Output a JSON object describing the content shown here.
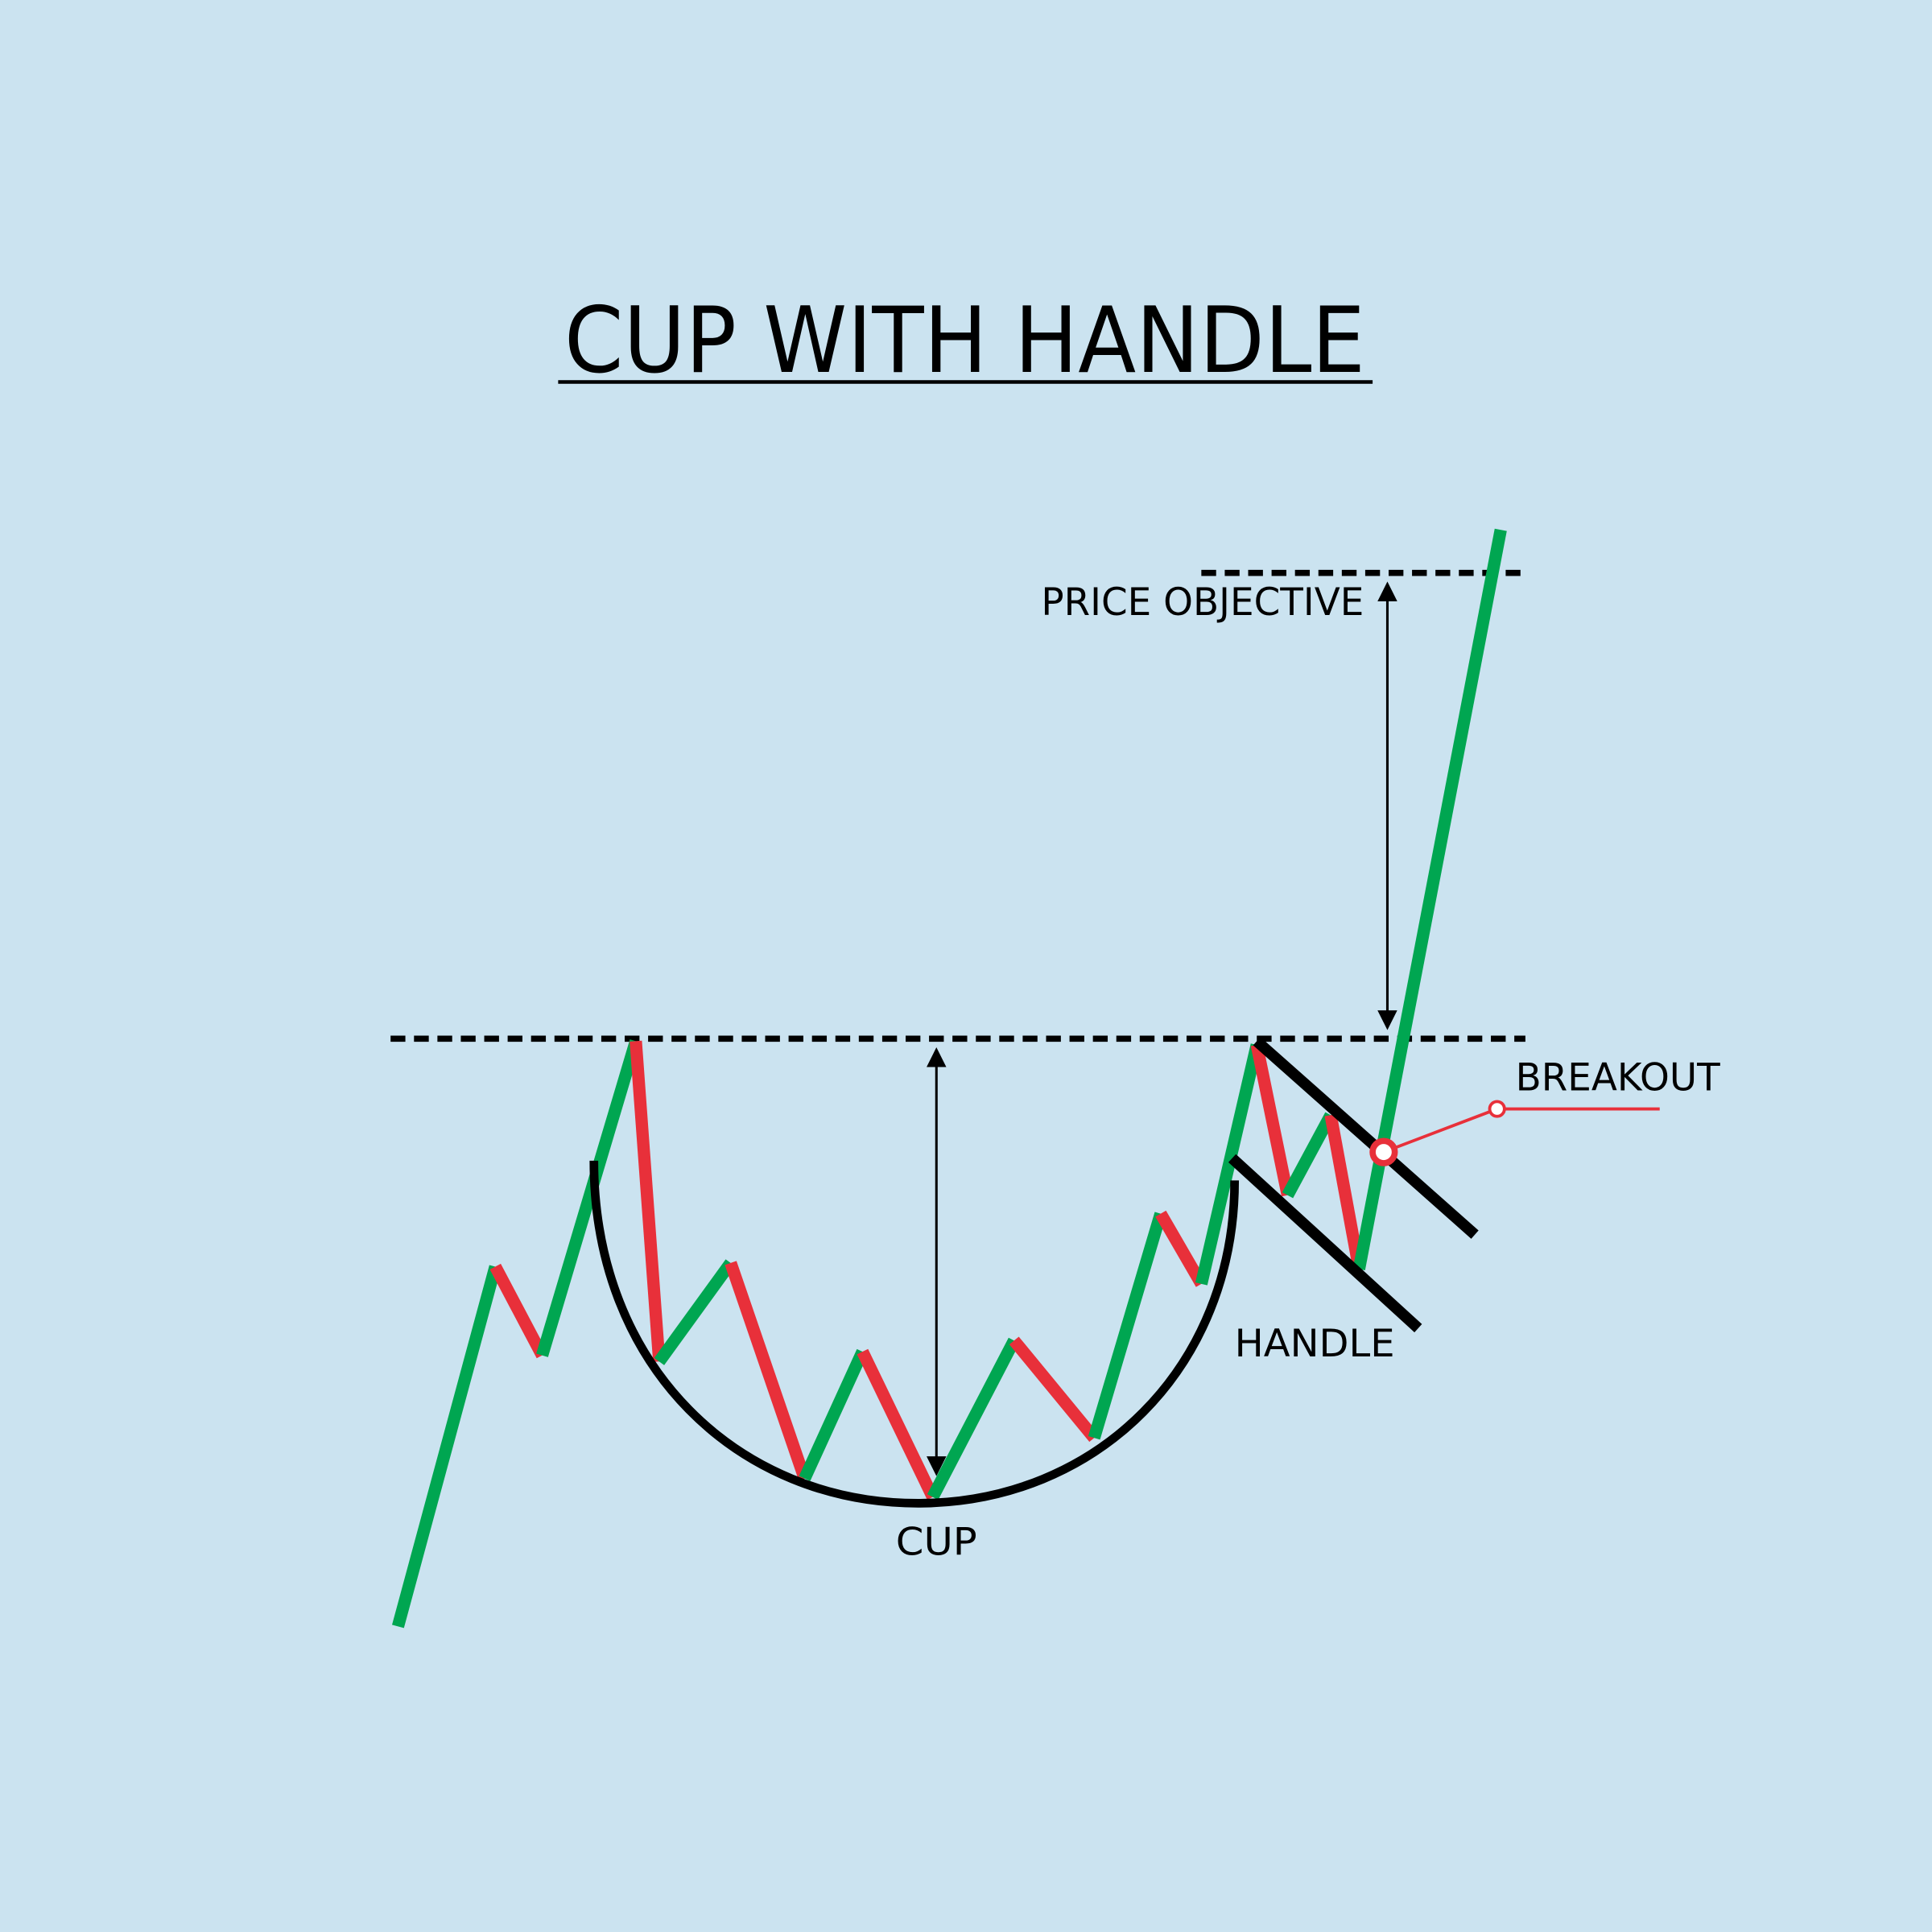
{
  "title": "CUP WITH HANDLE",
  "labels": {
    "price_objective": "PRICE OBJECTIVE",
    "breakout": "BREAKOUT",
    "handle": "HANDLE",
    "cup": "CUP"
  },
  "colors": {
    "background": "#cbe3f0",
    "up_move": "#00a651",
    "down_move": "#e8303a",
    "lines": "#000000",
    "breakout_marker": "#e8303a"
  }
}
